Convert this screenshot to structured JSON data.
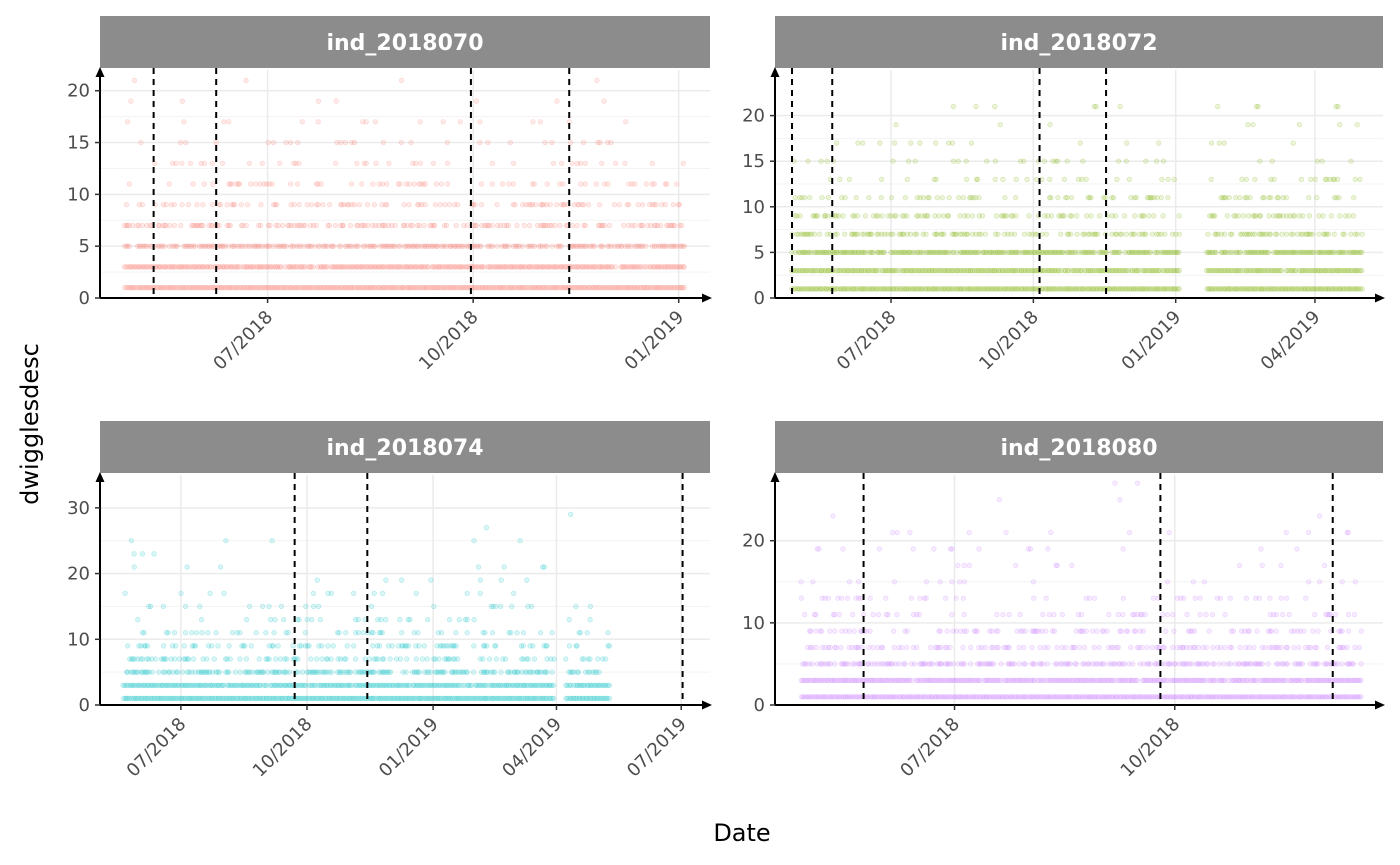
{
  "chart_data": {
    "type": "scatter",
    "xlabel": "Date",
    "ylabel": "dwigglesdesc",
    "point_alpha": 0.15,
    "strip_color": "#8c8c8c",
    "panels": [
      {
        "title": "ind_2018070",
        "color": "#F8766D",
        "xlim": [
          "2018-04-17",
          "2019-01-15"
        ],
        "ylim": [
          0,
          22
        ],
        "yticks": [
          0,
          5,
          10,
          15,
          20
        ],
        "xticks": [
          "2018-07-01",
          "2018-10-01",
          "2019-01-01"
        ],
        "xtick_labels": [
          "07/2018",
          "10/2018",
          "01/2019"
        ],
        "vlines": [
          "2018-05-11",
          "2018-06-08",
          "2018-09-30",
          "2018-11-13"
        ],
        "date_range": [
          "2018-04-28",
          "2019-01-04"
        ],
        "levels": [
          {
            "y": 1,
            "density": 1.0
          },
          {
            "y": 3,
            "density": 0.95
          },
          {
            "y": 5,
            "density": 0.75
          },
          {
            "y": 7,
            "density": 0.45
          },
          {
            "y": 9,
            "density": 0.3
          },
          {
            "y": 11,
            "density": 0.18
          },
          {
            "y": 13,
            "density": 0.12
          },
          {
            "y": 15,
            "density": 0.07
          },
          {
            "y": 17,
            "density": 0.04
          },
          {
            "y": 19,
            "density": 0.02
          },
          {
            "y": 21,
            "density": 0.01
          }
        ]
      },
      {
        "title": "ind_2018072",
        "color": "#7CAE00",
        "xlim": [
          "2018-04-17",
          "2019-05-15"
        ],
        "ylim": [
          0,
          25
        ],
        "yticks": [
          0,
          5,
          10,
          15,
          20
        ],
        "xticks": [
          "2018-07-01",
          "2018-10-01",
          "2019-01-01",
          "2019-04-01"
        ],
        "xtick_labels": [
          "07/2018",
          "10/2018",
          "01/2019",
          "04/2019"
        ],
        "vlines": [
          "2018-04-28",
          "2018-05-24",
          "2018-10-05",
          "2018-11-17"
        ],
        "date_range": [
          "2018-04-28",
          "2019-01-04"
        ],
        "date_range2": [
          "2019-01-21",
          "2019-05-02"
        ],
        "levels": [
          {
            "y": 1,
            "density": 1.0
          },
          {
            "y": 3,
            "density": 0.95
          },
          {
            "y": 5,
            "density": 0.85
          },
          {
            "y": 7,
            "density": 0.5
          },
          {
            "y": 9,
            "density": 0.35
          },
          {
            "y": 11,
            "density": 0.2
          },
          {
            "y": 13,
            "density": 0.12
          },
          {
            "y": 15,
            "density": 0.08
          },
          {
            "y": 17,
            "density": 0.04
          },
          {
            "y": 19,
            "density": 0.02
          },
          {
            "y": 21,
            "density": 0.01
          },
          {
            "y": 23,
            "density": 0.005
          }
        ]
      },
      {
        "title": "ind_2018074",
        "color": "#00BFC4",
        "xlim": [
          "2018-05-03",
          "2019-07-22"
        ],
        "ylim": [
          0,
          35
        ],
        "yticks": [
          0,
          10,
          20,
          30
        ],
        "xticks": [
          "2018-07-01",
          "2018-10-01",
          "2019-01-01",
          "2019-04-01",
          "2019-07-01"
        ],
        "xtick_labels": [
          "07/2018",
          "10/2018",
          "01/2019",
          "04/2019",
          "07/2019"
        ],
        "vlines": [
          "2018-09-22",
          "2018-11-14",
          "2019-07-02"
        ],
        "date_range": [
          "2018-05-20",
          "2019-03-31"
        ],
        "date_range2": [
          "2019-04-08",
          "2019-05-10"
        ],
        "levels": [
          {
            "y": 1,
            "density": 1.0
          },
          {
            "y": 3,
            "density": 0.95
          },
          {
            "y": 5,
            "density": 0.6
          },
          {
            "y": 7,
            "density": 0.35
          },
          {
            "y": 9,
            "density": 0.25
          },
          {
            "y": 11,
            "density": 0.15
          },
          {
            "y": 13,
            "density": 0.08
          },
          {
            "y": 15,
            "density": 0.06
          },
          {
            "y": 17,
            "density": 0.05
          },
          {
            "y": 19,
            "density": 0.04
          },
          {
            "y": 21,
            "density": 0.02
          },
          {
            "y": 23,
            "density": 0.015
          },
          {
            "y": 25,
            "density": 0.01
          },
          {
            "y": 27,
            "density": 0.008
          },
          {
            "y": 29,
            "density": 0.005
          }
        ]
      },
      {
        "title": "ind_2018080",
        "color": "#C77CFF",
        "xlim": [
          "2018-04-17",
          "2018-12-27"
        ],
        "ylim": [
          0,
          28
        ],
        "yticks": [
          0,
          10,
          20
        ],
        "xticks": [
          "2018-07-01",
          "2018-10-01"
        ],
        "xtick_labels": [
          "07/2018",
          "10/2018"
        ],
        "vlines": [
          "2018-05-24",
          "2018-09-25",
          "2018-12-06"
        ],
        "date_range": [
          "2018-04-28",
          "2018-12-18"
        ],
        "levels": [
          {
            "y": 1,
            "density": 1.0
          },
          {
            "y": 3,
            "density": 0.95
          },
          {
            "y": 5,
            "density": 0.6
          },
          {
            "y": 7,
            "density": 0.4
          },
          {
            "y": 9,
            "density": 0.25
          },
          {
            "y": 11,
            "density": 0.15
          },
          {
            "y": 13,
            "density": 0.1
          },
          {
            "y": 15,
            "density": 0.06
          },
          {
            "y": 17,
            "density": 0.04
          },
          {
            "y": 19,
            "density": 0.03
          },
          {
            "y": 21,
            "density": 0.015
          },
          {
            "y": 23,
            "density": 0.01
          },
          {
            "y": 25,
            "density": 0.006
          },
          {
            "y": 27,
            "density": 0.003
          }
        ]
      }
    ]
  }
}
